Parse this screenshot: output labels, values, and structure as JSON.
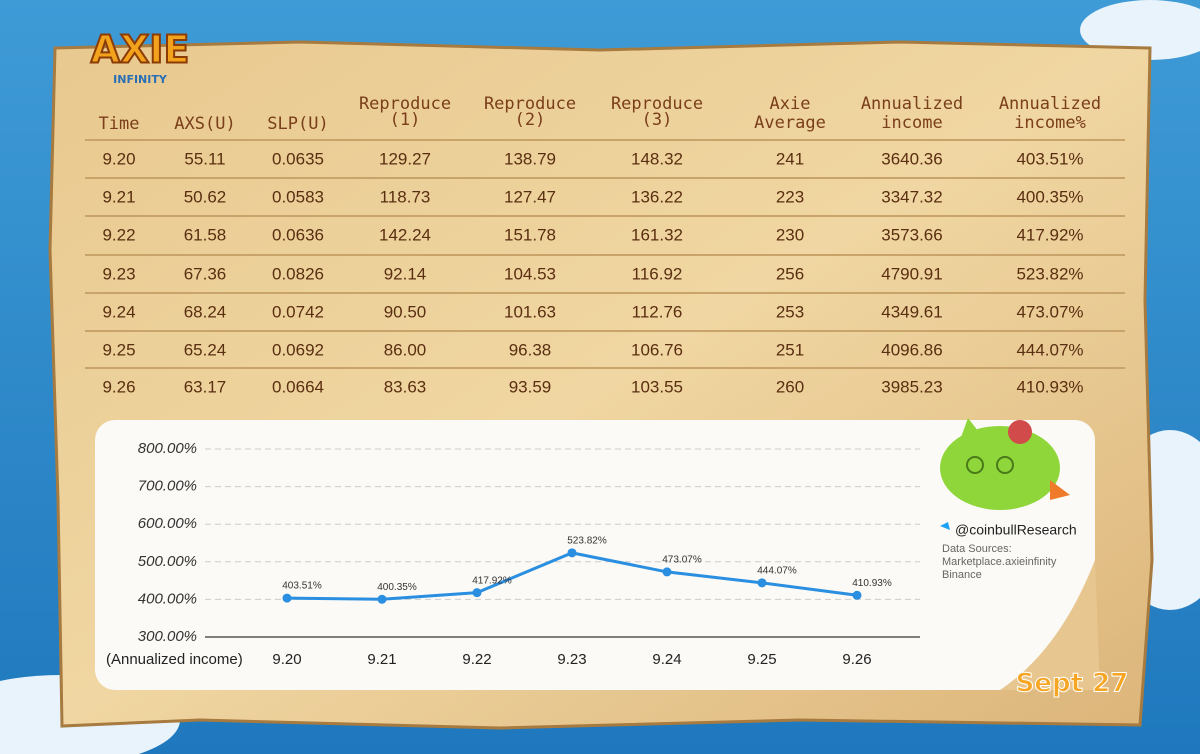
{
  "logo": {
    "title": "AXIE",
    "subtitle": "INFINITY"
  },
  "table": {
    "header": [
      [
        "Time"
      ],
      [
        "AXS(U)"
      ],
      [
        "SLP(U)"
      ],
      [
        "Reproduce",
        "(1)"
      ],
      [
        "Reproduce",
        "(2)"
      ],
      [
        "Reproduce",
        "(3)"
      ],
      [
        "Axie",
        "Average"
      ],
      [
        "Annualized",
        "income"
      ],
      [
        "Annualized",
        "income%"
      ]
    ],
    "rows": [
      [
        "9.20",
        "55.11",
        "0.0635",
        "129.27",
        "138.79",
        "148.32",
        "241",
        "3640.36",
        "403.51%"
      ],
      [
        "9.21",
        "50.62",
        "0.0583",
        "118.73",
        "127.47",
        "136.22",
        "223",
        "3347.32",
        "400.35%"
      ],
      [
        "9.22",
        "61.58",
        "0.0636",
        "142.24",
        "151.78",
        "161.32",
        "230",
        "3573.66",
        "417.92%"
      ],
      [
        "9.23",
        "67.36",
        "0.0826",
        "92.14",
        "104.53",
        "116.92",
        "256",
        "4790.91",
        "523.82%"
      ],
      [
        "9.24",
        "68.24",
        "0.0742",
        "90.50",
        "101.63",
        "112.76",
        "253",
        "4349.61",
        "473.07%"
      ],
      [
        "9.25",
        "65.24",
        "0.0692",
        "86.00",
        "96.38",
        "106.76",
        "251",
        "4096.86",
        "444.07%"
      ],
      [
        "9.26",
        "63.17",
        "0.0664",
        "83.63",
        "93.59",
        "103.55",
        "260",
        "3985.23",
        "410.93%"
      ]
    ]
  },
  "chart_data": {
    "type": "line",
    "x_label": "(Annualized income)",
    "categories": [
      "9.20",
      "9.21",
      "9.22",
      "9.23",
      "9.24",
      "9.25",
      "9.26"
    ],
    "values": [
      403.51,
      400.35,
      417.92,
      523.82,
      473.07,
      444.07,
      410.93
    ],
    "value_labels": [
      "403.51%",
      "400.35%",
      "417.92%",
      "523.82%",
      "473.07%",
      "444.07%",
      "410.93%"
    ],
    "color": "#2a8fe0",
    "ylim": [
      300,
      800
    ],
    "yticks": [
      {
        "value": 300,
        "label": "300.00%"
      },
      {
        "value": 400,
        "label": "400.00%"
      },
      {
        "value": 500,
        "label": "500.00%"
      },
      {
        "value": 600,
        "label": "600.00%"
      },
      {
        "value": 700,
        "label": "700.00%"
      },
      {
        "value": 800,
        "label": "800.00%"
      }
    ],
    "grid": true
  },
  "credits": {
    "handle": "@coinbullResearch",
    "sources": [
      "Data Sources:",
      "Marketplace.axieinfinity",
      "Binance"
    ]
  },
  "date": "Sept 27"
}
